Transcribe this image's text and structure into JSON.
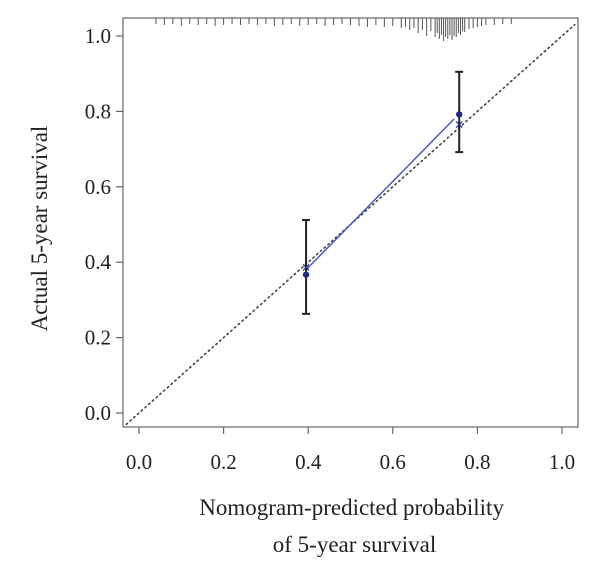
{
  "chart_data": {
    "type": "scatter",
    "title": "",
    "xlabel_lines": [
      "Nomogram-predicted probability",
      "of 5-year survival"
    ],
    "ylabel": "Actual 5-year survival",
    "xlim": [
      -0.04,
      1.04
    ],
    "ylim": [
      -0.04,
      1.045
    ],
    "x_ticks": [
      0.0,
      0.2,
      0.4,
      0.6,
      0.8,
      1.0
    ],
    "x_tick_labels": [
      "0.0",
      "0.2",
      "0.4",
      "0.6",
      "0.8",
      "1.0"
    ],
    "y_ticks": [
      0.0,
      0.2,
      0.4,
      0.6,
      0.8,
      1.0
    ],
    "y_tick_labels": [
      "0.0",
      "0.2",
      "0.4",
      "0.6",
      "0.8",
      "1.0"
    ],
    "grid": false,
    "reference_line": {
      "x": [
        0,
        1
      ],
      "y": [
        0,
        1
      ],
      "style": "dotted"
    },
    "calibration_points": [
      {
        "x": 0.395,
        "y": 0.367,
        "ci_low": 0.263,
        "ci_high": 0.512
      },
      {
        "x": 0.757,
        "y": 0.792,
        "ci_low": 0.692,
        "ci_high": 0.905
      }
    ],
    "calibration_line": {
      "x": [
        0.395,
        0.745
      ],
      "y": [
        0.38,
        0.78
      ]
    },
    "crosses": [
      {
        "x": 0.395,
        "y": 0.386
      },
      {
        "x": 0.757,
        "y": 0.765
      }
    ],
    "rug": [
      {
        "x": 0.04,
        "h": 0.15
      },
      {
        "x": 0.06,
        "h": 0.2
      },
      {
        "x": 0.08,
        "h": 0.15
      },
      {
        "x": 0.1,
        "h": 0.25
      },
      {
        "x": 0.12,
        "h": 0.15
      },
      {
        "x": 0.14,
        "h": 0.2
      },
      {
        "x": 0.16,
        "h": 0.15
      },
      {
        "x": 0.18,
        "h": 0.25
      },
      {
        "x": 0.2,
        "h": 0.2
      },
      {
        "x": 0.22,
        "h": 0.15
      },
      {
        "x": 0.24,
        "h": 0.2
      },
      {
        "x": 0.26,
        "h": 0.15
      },
      {
        "x": 0.28,
        "h": 0.2
      },
      {
        "x": 0.3,
        "h": 0.15
      },
      {
        "x": 0.32,
        "h": 0.25
      },
      {
        "x": 0.34,
        "h": 0.2
      },
      {
        "x": 0.36,
        "h": 0.15
      },
      {
        "x": 0.38,
        "h": 0.25
      },
      {
        "x": 0.4,
        "h": 0.2
      },
      {
        "x": 0.42,
        "h": 0.15
      },
      {
        "x": 0.44,
        "h": 0.25
      },
      {
        "x": 0.46,
        "h": 0.2
      },
      {
        "x": 0.48,
        "h": 0.15
      },
      {
        "x": 0.5,
        "h": 0.2
      },
      {
        "x": 0.52,
        "h": 0.25
      },
      {
        "x": 0.54,
        "h": 0.3
      },
      {
        "x": 0.56,
        "h": 0.2
      },
      {
        "x": 0.58,
        "h": 0.3
      },
      {
        "x": 0.6,
        "h": 0.25
      },
      {
        "x": 0.62,
        "h": 0.35
      },
      {
        "x": 0.63,
        "h": 0.3
      },
      {
        "x": 0.64,
        "h": 0.45
      },
      {
        "x": 0.65,
        "h": 0.35
      },
      {
        "x": 0.66,
        "h": 0.6
      },
      {
        "x": 0.67,
        "h": 0.45
      },
      {
        "x": 0.68,
        "h": 0.75
      },
      {
        "x": 0.69,
        "h": 0.5
      },
      {
        "x": 0.7,
        "h": 0.8
      },
      {
        "x": 0.705,
        "h": 0.6
      },
      {
        "x": 0.71,
        "h": 0.9
      },
      {
        "x": 0.715,
        "h": 0.7
      },
      {
        "x": 0.72,
        "h": 1.0
      },
      {
        "x": 0.725,
        "h": 0.8
      },
      {
        "x": 0.73,
        "h": 0.9
      },
      {
        "x": 0.735,
        "h": 0.7
      },
      {
        "x": 0.74,
        "h": 0.95
      },
      {
        "x": 0.745,
        "h": 0.75
      },
      {
        "x": 0.75,
        "h": 0.8
      },
      {
        "x": 0.755,
        "h": 0.6
      },
      {
        "x": 0.76,
        "h": 0.7
      },
      {
        "x": 0.765,
        "h": 0.5
      },
      {
        "x": 0.77,
        "h": 0.55
      },
      {
        "x": 0.78,
        "h": 0.4
      },
      {
        "x": 0.79,
        "h": 0.35
      },
      {
        "x": 0.8,
        "h": 0.3
      },
      {
        "x": 0.81,
        "h": 0.25
      },
      {
        "x": 0.82,
        "h": 0.2
      },
      {
        "x": 0.84,
        "h": 0.2
      },
      {
        "x": 0.86,
        "h": 0.15
      },
      {
        "x": 0.88,
        "h": 0.15
      }
    ],
    "colors": {
      "point": "#1f2a80",
      "calibration_line": "#4b5bc4",
      "error_bar": "#222222",
      "reference_line": "#444444",
      "axes": "#666666",
      "rug": "#555555"
    }
  }
}
